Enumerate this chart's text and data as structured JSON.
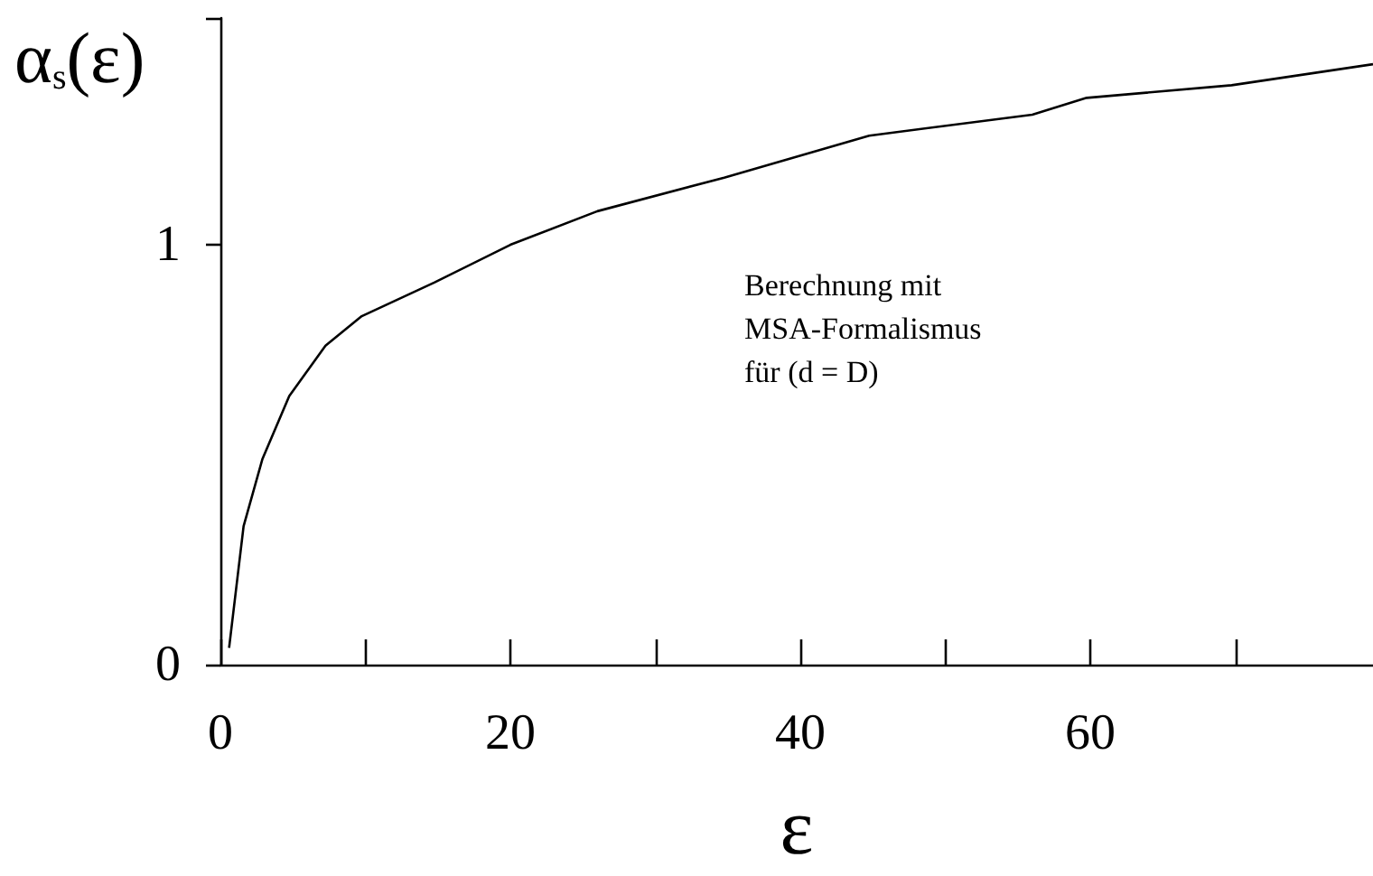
{
  "chart_data": {
    "type": "line",
    "xlabel": "ε",
    "ylabel": "α$_{s}$(ε)",
    "annotations": [
      "Berechnung mit\nMSA-Formalismus\nfür (d = D)"
    ],
    "x": [
      0.6,
      1.6,
      2.9,
      4.75,
      7.25,
      9.75,
      14.75,
      20,
      26,
      34.75,
      44.75,
      56,
      59.75,
      69.75,
      79.5
    ],
    "series": [
      {
        "color": "#000000",
        "values": [
          0.04,
          0.33,
          0.49,
          0.64,
          0.76,
          0.83,
          0.91,
          1.0,
          1.08,
          1.16,
          1.26,
          1.31,
          1.35,
          1.38,
          1.43
        ]
      }
    ],
    "xlim": [
      0,
      79.5
    ],
    "xticks": [
      0,
      {
        "value": 10,
        "label": null
      },
      20,
      {
        "value": 30,
        "label": null
      },
      40,
      {
        "value": 50,
        "label": null
      },
      60,
      {
        "value": 70,
        "label": null
      }
    ],
    "ylim": [
      0,
      1.54
    ],
    "yticks": [
      0,
      1,
      {
        "value": 1.54,
        "label": null
      }
    ],
    "marker": "none",
    "line_style": "solid"
  }
}
